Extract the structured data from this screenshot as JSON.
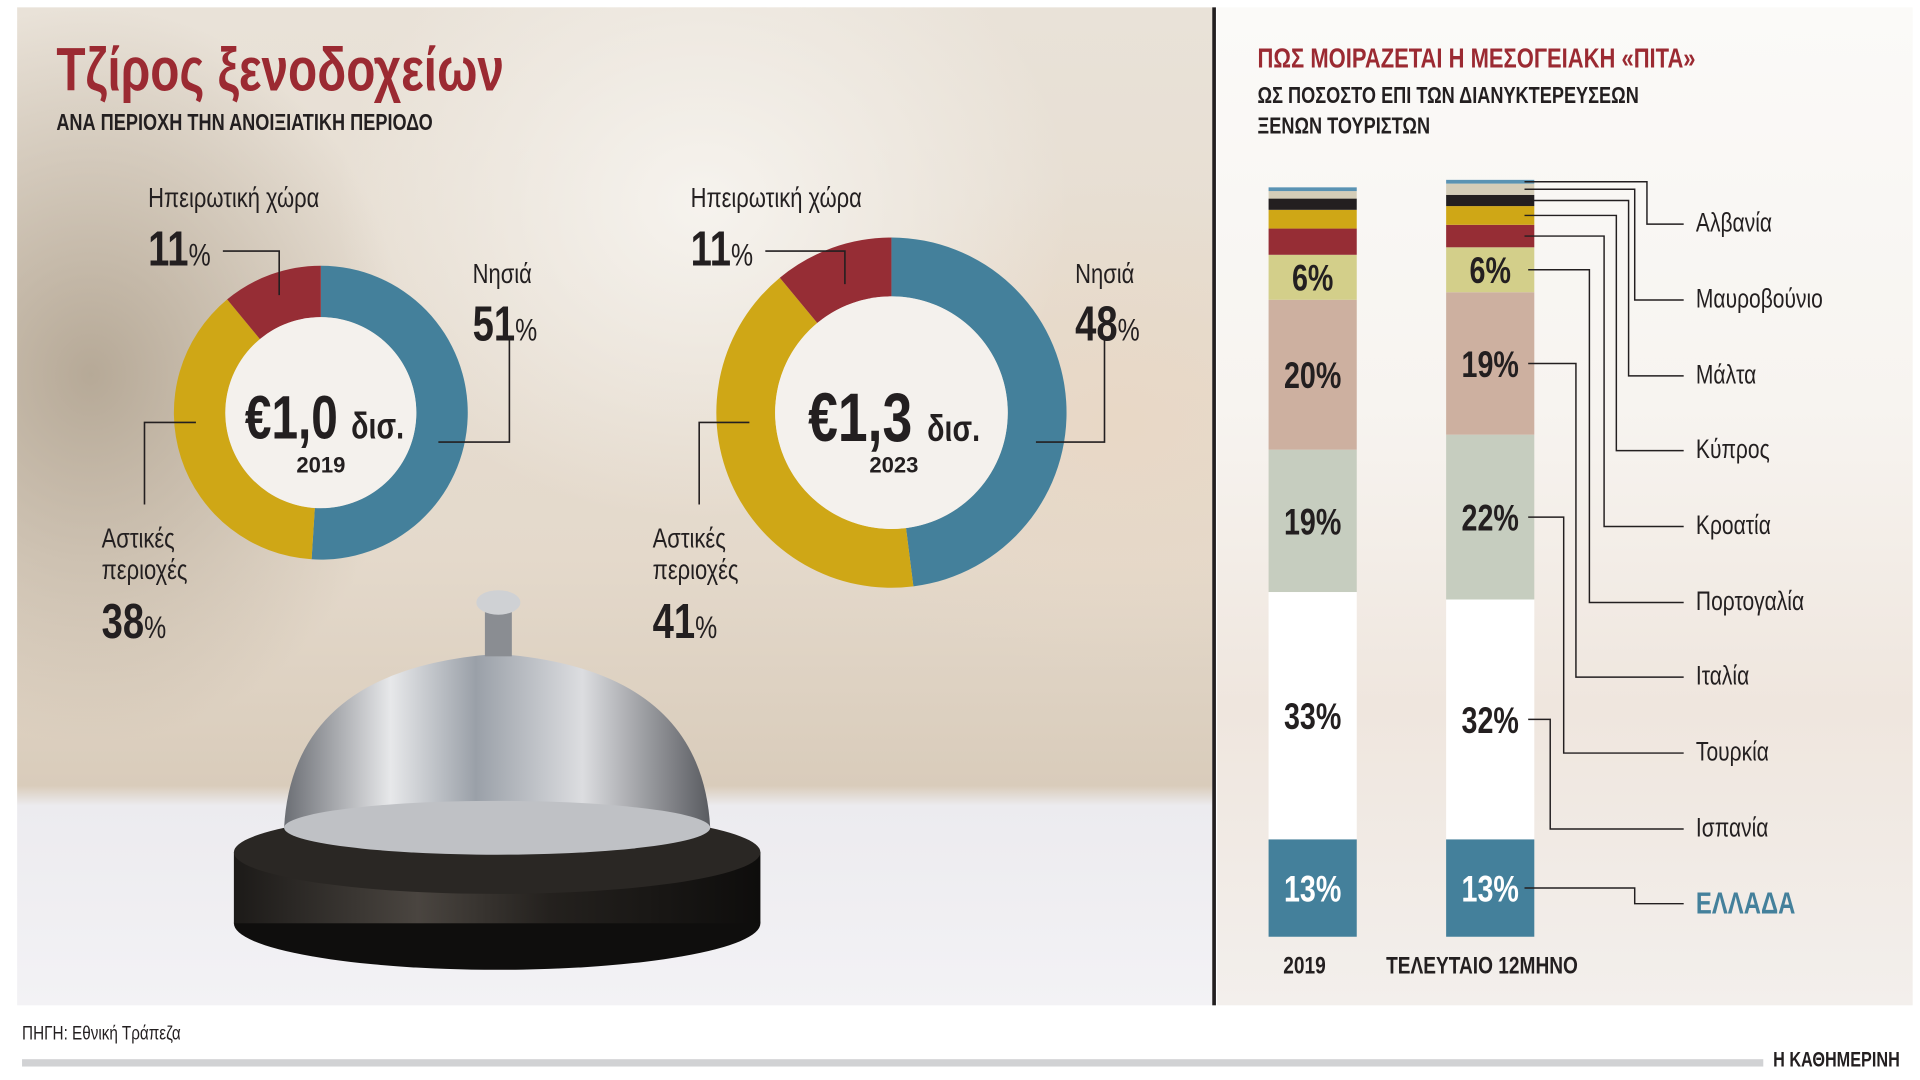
{
  "left": {
    "title": "Τζίρος ξενοδοχείων",
    "subtitle": "ΑΝΑ ΠΕΡΙΟΧΗ ΤΗΝ ΑΝΟΙΞΙΑΤΙΚΗ ΠΕΡΙΟΔΟ"
  },
  "right": {
    "title": "ΠΩΣ ΜΟΙΡΑΖΕΤΑΙ Η ΜΕΣΟΓΕΙΑΚΗ «ΠΙΤΑ»",
    "subtitle_line1": "ΩΣ ΠΟΣΟΣΤΟ ΕΠΙ ΤΩΝ ΔΙΑΝΥΚΤΕΡΕΥΣΕΩΝ",
    "subtitle_line2": "ΞΕΝΩΝ ΤΟΥΡΙΣΤΩΝ"
  },
  "chart_data": [
    {
      "type": "pie",
      "variant": "donut",
      "year": "2019",
      "center_value": "€1,0",
      "center_unit": "δισ.",
      "slices": [
        {
          "label": "Νησιά",
          "value": 51,
          "display": "51",
          "color": "#44809b"
        },
        {
          "label": "Αστικές περιοχές",
          "label_line1": "Αστικές",
          "label_line2": "περιοχές",
          "value": 38,
          "display": "38",
          "color": "#cfa716"
        },
        {
          "label": "Ηπειρωτική χώρα",
          "value": 11,
          "display": "11",
          "color": "#962d35"
        }
      ]
    },
    {
      "type": "pie",
      "variant": "donut",
      "year": "2023",
      "center_value": "€1,3",
      "center_unit": "δισ.",
      "slices": [
        {
          "label": "Νησιά",
          "value": 48,
          "display": "48",
          "color": "#44809b"
        },
        {
          "label": "Αστικές περιοχές",
          "label_line1": "Αστικές",
          "label_line2": "περιοχές",
          "value": 41,
          "display": "41",
          "color": "#cfa716"
        },
        {
          "label": "Ηπειρωτική χώρα",
          "value": 11,
          "display": "11",
          "color": "#962d35"
        }
      ]
    },
    {
      "type": "bar",
      "stacked": true,
      "categories": [
        "2019",
        "ΤΕΛΕΥΤΑΙΟ 12ΜΗΝΟ"
      ],
      "ylim": [
        0,
        100
      ],
      "series": [
        {
          "name": "ΕΛΛΑΔΑ",
          "color": "#44809b",
          "values": [
            13,
            13
          ],
          "labels": [
            "13%",
            "13%"
          ]
        },
        {
          "name": "Ισπανία",
          "color": "#ffffff",
          "values": [
            33,
            32
          ],
          "labels": [
            "33%",
            "32%"
          ]
        },
        {
          "name": "Τουρκία",
          "color": "#c6cdbf",
          "values": [
            19,
            22
          ],
          "labels": [
            "19%",
            "22%"
          ]
        },
        {
          "name": "Ιταλία",
          "color": "#cdb0a0",
          "values": [
            20,
            19
          ],
          "labels": [
            "20%",
            "19%"
          ]
        },
        {
          "name": "Πορτογαλία",
          "color": "#d3cf8a",
          "values": [
            6,
            6
          ],
          "labels": [
            "6%",
            "6%"
          ]
        },
        {
          "name": "Κροατία",
          "color": "#962d35",
          "values": [
            3.5,
            3
          ]
        },
        {
          "name": "Κύπρος",
          "color": "#cfa716",
          "values": [
            2.5,
            2.5
          ]
        },
        {
          "name": "Μάλτα",
          "color": "#231f20",
          "values": [
            1.5,
            1.5
          ]
        },
        {
          "name": "Μαυροβούνιο",
          "color": "#d4cdb8",
          "values": [
            1,
            1.5
          ]
        },
        {
          "name": "Αλβανία",
          "color": "#5a93b3",
          "values": [
            0.5,
            0.5
          ]
        }
      ]
    }
  ],
  "footer": {
    "source": "ΠΗΓΗ: Εθνική Τράπεζα",
    "brand": "Η ΚΑΘΗΜΕΡΙΝΗ"
  }
}
